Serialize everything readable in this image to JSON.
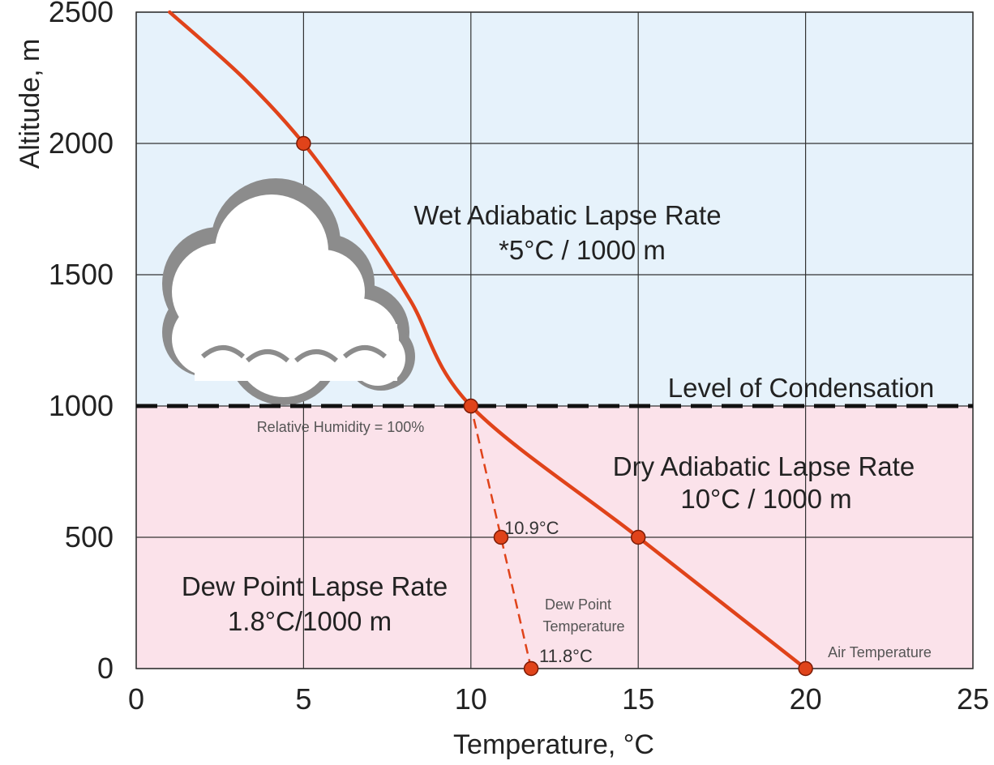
{
  "chart_data": {
    "type": "line",
    "xlabel": "Temperature, °C",
    "ylabel": "Altitude, m",
    "xlim": [
      0,
      25
    ],
    "ylim": [
      0,
      2500
    ],
    "xticks": [
      "0",
      "5",
      "10",
      "15",
      "20",
      "25"
    ],
    "yticks": [
      "0",
      "500",
      "1000",
      "1500",
      "2000",
      "2500"
    ],
    "grid": true,
    "condensation_level": 1000,
    "colors": {
      "upper_region": "#e6f2fb",
      "lower_region": "#fbe2ea",
      "curve": "#e0431a",
      "marker": "#e0431a",
      "dashed_line": "#111111"
    },
    "series": [
      {
        "style": "solid",
        "x": [
          20,
          15,
          10,
          8.2,
          6.7,
          5,
          3.2,
          1
        ],
        "y": [
          0,
          500,
          1000,
          1400,
          1700,
          2000,
          2250,
          2500
        ]
      },
      {
        "style": "dashed",
        "x": [
          11.8,
          10.9,
          10
        ],
        "y": [
          0,
          500,
          1000
        ]
      }
    ],
    "markers": [
      {
        "x": 5,
        "y": 2000
      },
      {
        "x": 10,
        "y": 1000
      },
      {
        "x": 10.9,
        "y": 500
      },
      {
        "x": 15,
        "y": 500
      },
      {
        "x": 11.8,
        "y": 0
      },
      {
        "x": 20,
        "y": 0
      }
    ],
    "annotations": {
      "wet_rate_line1": "Wet Adiabatic Lapse Rate",
      "wet_rate_line2": "*5°C / 1000 m",
      "condensation": "Level of Condensation",
      "humidity": "Relative Humidity = 100%",
      "dry_rate_line1": "Dry Adiabatic Lapse Rate",
      "dry_rate_line2": "10°C / 1000 m",
      "dew_rate_line1": "Dew Point Lapse Rate",
      "dew_rate_line2": "1.8°C/1000 m",
      "dew_500": "10.9°C",
      "dew_point_line1": "Dew Point",
      "dew_point_line2": "Temperature",
      "dew_0": "11.8°C",
      "air_temp": "Air Temperature"
    }
  },
  "icons": {
    "cloud": "cloud-icon"
  }
}
